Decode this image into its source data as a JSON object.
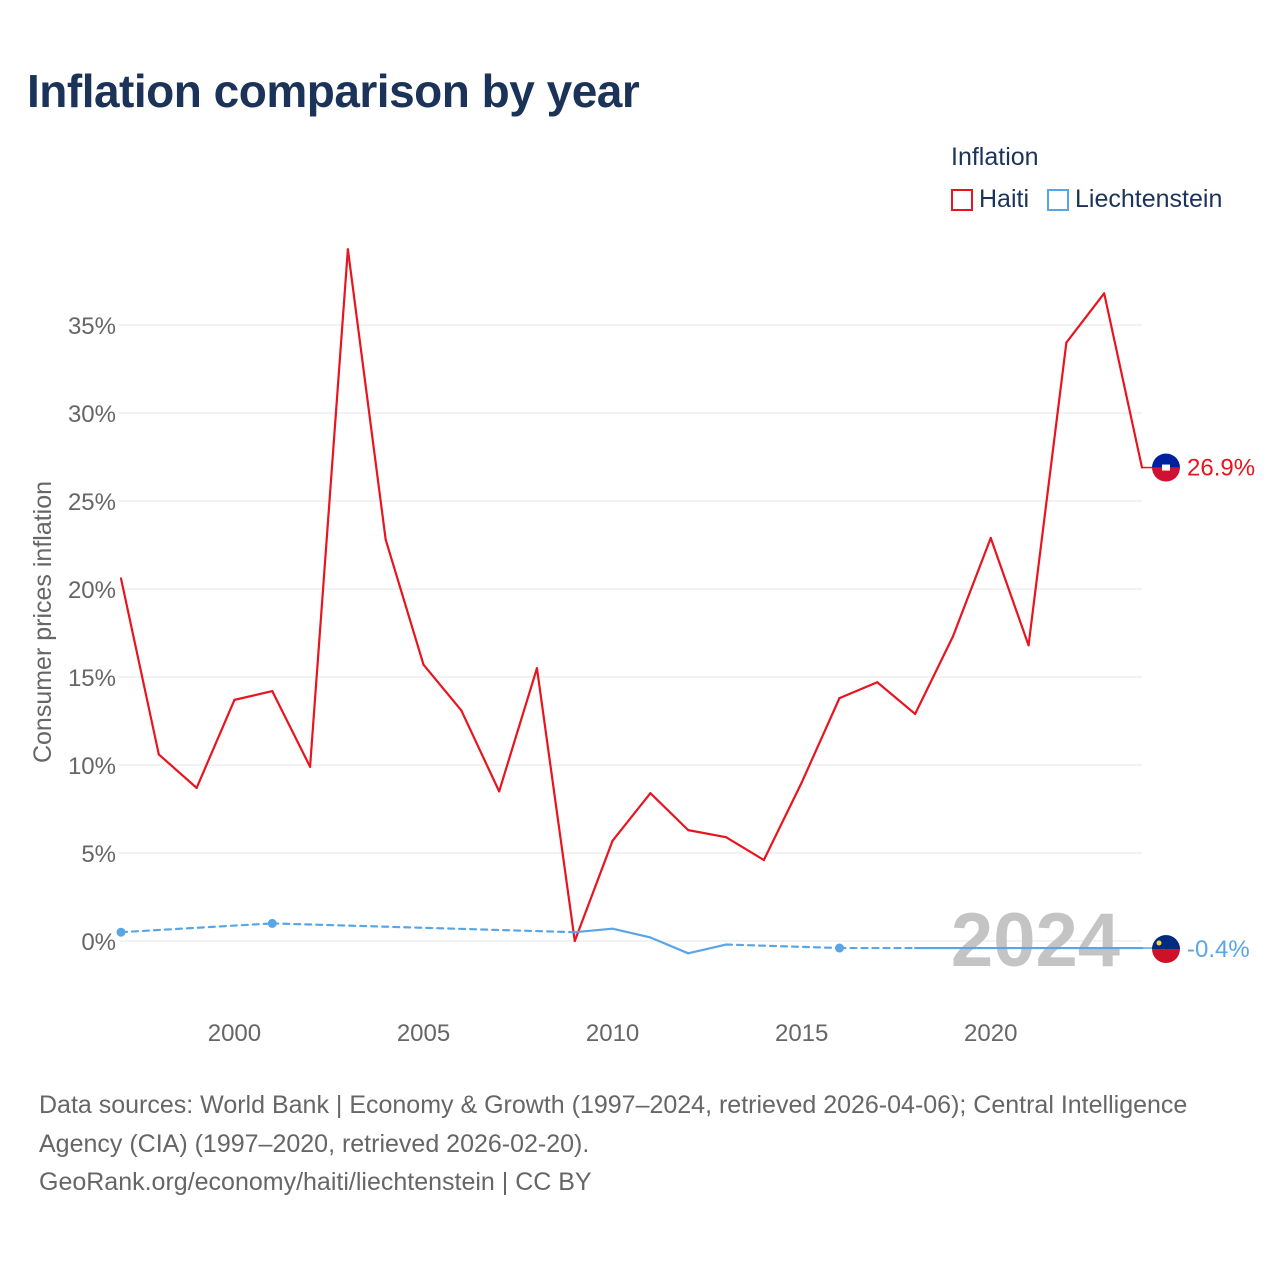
{
  "title": "Inflation comparison by year",
  "legend": {
    "title": "Inflation",
    "items": [
      {
        "label": "Haiti",
        "color": "#e8141e"
      },
      {
        "label": "Liechtenstein",
        "color": "#5aa5e6"
      }
    ]
  },
  "year_watermark": "2024",
  "footer": {
    "sources": "Data sources: World Bank | Economy & Growth (1997–2024, retrieved 2026-04-06); Central Intelligence Agency (CIA) (1997–2020, retrieved 2026-02-20).",
    "credit": "GeoRank.org/economy/haiti/liechtenstein | CC BY"
  },
  "chart_data": {
    "type": "line",
    "title": "Inflation comparison by year",
    "xlabel": "",
    "ylabel": "Consumer prices inflation",
    "xlim": [
      1997,
      2024
    ],
    "ylim": [
      -3,
      37
    ],
    "x_ticks": [
      2000,
      2005,
      2010,
      2015,
      2020
    ],
    "x_tick_labels": [
      "2000",
      "2005",
      "2010",
      "2015",
      "2020"
    ],
    "y_ticks": [
      0,
      5,
      10,
      15,
      20,
      25,
      30,
      35
    ],
    "y_tick_labels": [
      "0%",
      "5%",
      "10%",
      "15%",
      "20%",
      "25%",
      "30%",
      "35%"
    ],
    "grid": true,
    "legend_position": "top-right",
    "series": [
      {
        "name": "Haiti",
        "color": "#e8141e",
        "end_label": "26.9%",
        "points": [
          [
            1997,
            20.6
          ],
          [
            1998,
            10.6
          ],
          [
            1999,
            8.7
          ],
          [
            2000,
            13.7
          ],
          [
            2001,
            14.2
          ],
          [
            2002,
            9.9
          ],
          [
            2003,
            39.3
          ],
          [
            2004,
            22.8
          ],
          [
            2005,
            15.7
          ],
          [
            2006,
            13.1
          ],
          [
            2007,
            8.5
          ],
          [
            2008,
            15.5
          ],
          [
            2009,
            0.0
          ],
          [
            2010,
            5.7
          ],
          [
            2011,
            8.4
          ],
          [
            2012,
            6.3
          ],
          [
            2013,
            5.9
          ],
          [
            2014,
            4.6
          ],
          [
            2015,
            9.0
          ],
          [
            2016,
            13.8
          ],
          [
            2017,
            14.7
          ],
          [
            2018,
            12.9
          ],
          [
            2019,
            17.3
          ],
          [
            2020,
            22.9
          ],
          [
            2021,
            16.8
          ],
          [
            2022,
            34.0
          ],
          [
            2023,
            36.8
          ],
          [
            2024,
            26.9
          ]
        ]
      },
      {
        "name": "Liechtenstein",
        "color": "#5aa5e6",
        "end_label": "-0.4%",
        "points": [
          [
            1997,
            0.5
          ],
          [
            2001,
            1.0
          ],
          [
            2009,
            0.5
          ],
          [
            2010,
            0.7
          ],
          [
            2011,
            0.2
          ],
          [
            2012,
            -0.7
          ],
          [
            2013,
            -0.2
          ],
          [
            2016,
            -0.4
          ],
          [
            2018,
            -0.4
          ],
          [
            2019,
            -0.4
          ],
          [
            2020,
            -0.4
          ],
          [
            2021,
            -0.4
          ],
          [
            2022,
            -0.4
          ],
          [
            2023,
            -0.4
          ],
          [
            2024,
            -0.4
          ]
        ],
        "dashed_segments": [
          [
            1997,
            2009
          ],
          [
            2013,
            2018
          ]
        ],
        "markers": [
          1997,
          2001,
          2016
        ]
      }
    ]
  }
}
